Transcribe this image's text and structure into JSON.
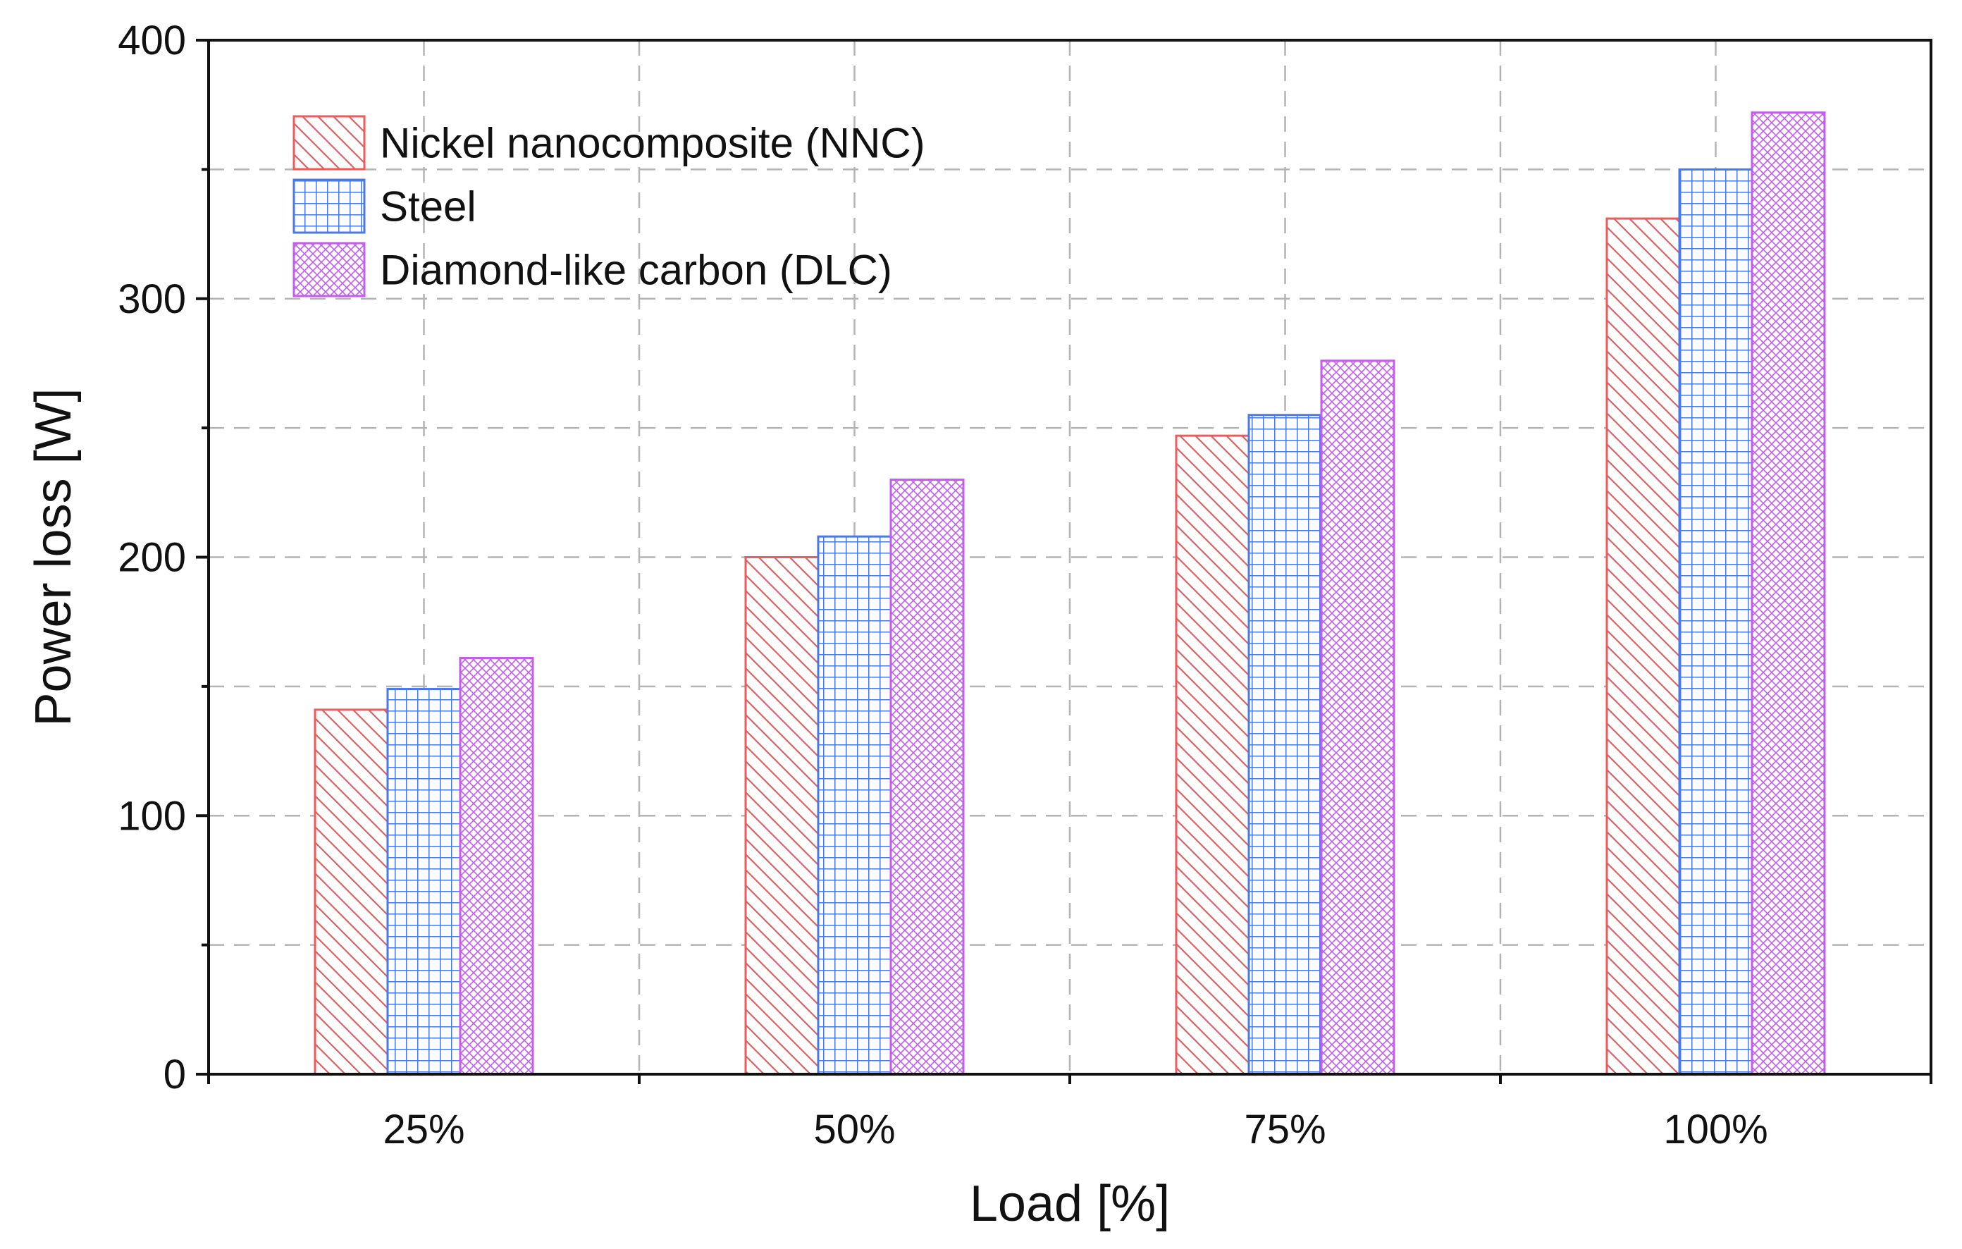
{
  "chart_data": {
    "type": "bar",
    "title": "",
    "xlabel": "Load [%]",
    "ylabel": "Power loss [W]",
    "categories": [
      "25%",
      "50%",
      "75%",
      "100%"
    ],
    "ylim": [
      0,
      400
    ],
    "yticks": [
      0,
      100,
      200,
      300,
      400
    ],
    "y_minor_step": 50,
    "grid": true,
    "legend_position": "top-left",
    "series": [
      {
        "name": "Nickel nanocomposite (NNC)",
        "values": [
          141,
          200,
          247,
          331
        ],
        "color": "#f05a5a",
        "pattern": "diagonal-hatch"
      },
      {
        "name": "Steel",
        "values": [
          149,
          208,
          255,
          350
        ],
        "color": "#4a78e6",
        "pattern": "grid"
      },
      {
        "name": "Diamond-like carbon (DLC)",
        "values": [
          161,
          230,
          276,
          372
        ],
        "color": "#c45cf0",
        "pattern": "crosshatch"
      }
    ]
  }
}
